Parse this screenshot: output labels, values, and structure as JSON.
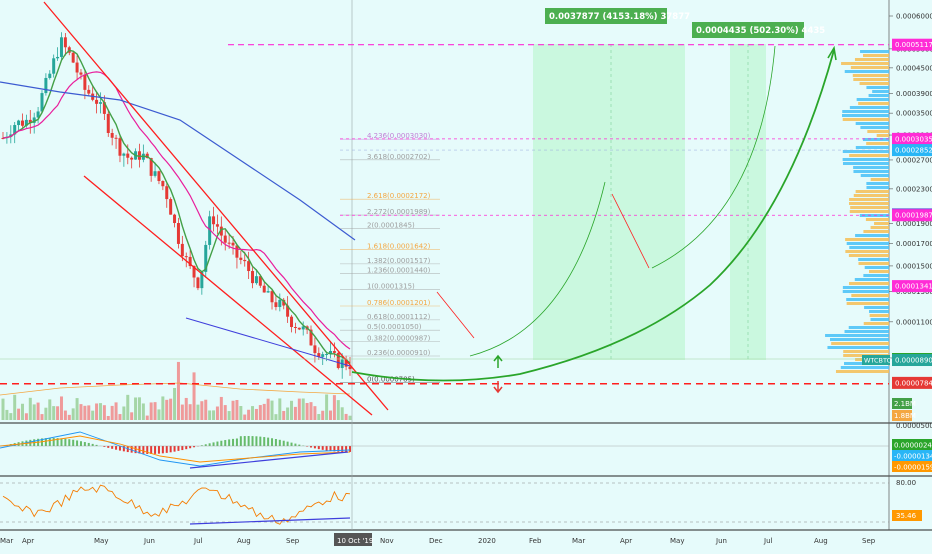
{
  "colors": {
    "background": "#e6fbfb",
    "candle_up": "#26a69a",
    "candle_down": "#e53935",
    "ema_green": "#43a047",
    "ma_magenta": "#e91e9c",
    "ma_blue": "#3c5bd1",
    "channel": "#ff1e1e",
    "target": "#ff2bd6",
    "support": "#ff1e1e",
    "curve": "#2aa52a",
    "macd_line": "#2196f3",
    "signal_line": "#ff8f00",
    "rsi_line": "#f57c00",
    "divergence": "#3f3fdc"
  },
  "chart_data": {
    "type": "candlestick",
    "symbol": "WTCBTC",
    "price_axis": {
      "ticks": [
        "0.0006000",
        "0.0005000",
        "0.0004500",
        "0.0003900",
        "0.0003500",
        "0.0003100",
        "0.0002700",
        "0.0002300",
        "0.0001900",
        "0.0001700",
        "0.0001500",
        "0.0001300",
        "0.0001100",
        "0.0000900"
      ],
      "scale": "log"
    },
    "time_axis": {
      "ticks": [
        "Mar",
        "Apr",
        "May",
        "Jun",
        "Jul",
        "Aug",
        "Sep",
        "Oct",
        "Nov",
        "Dec",
        "2020",
        "Feb",
        "Mar",
        "Apr",
        "May",
        "Jun",
        "Jul",
        "Aug",
        "Sep"
      ],
      "cursor_label": "10 Oct '19"
    },
    "price_tags": [
      {
        "value": "0.0005117",
        "color": "#ff2bd6"
      },
      {
        "value": "0.0003035",
        "color": "#ff2bd6"
      },
      {
        "value": "0.0002852",
        "color": "#29b6f6"
      },
      {
        "value": "0.0001996",
        "color": "#5c4ad6"
      },
      {
        "value": "0.0001987",
        "color": "#ff2bd6"
      },
      {
        "value": "0.0001341",
        "color": "#ff2bd6"
      },
      {
        "value": "0.0000895",
        "color": "#2aa52a"
      },
      {
        "value": "0.0000890",
        "color": "#26a69a"
      },
      {
        "value": "0.0000784",
        "color": "#e53935"
      }
    ],
    "symbol_tag": "WTCBTC",
    "volume_tags": [
      "2.1BM",
      "1.8BM"
    ],
    "fib_levels": [
      {
        "label": "4.236(0.0003030)",
        "value": 0.000303,
        "color": "#c07fd6"
      },
      {
        "label": "3.618(0.0002702)",
        "value": 0.0002702,
        "color": "#9e9e9e"
      },
      {
        "label": "2.618(0.0002172)",
        "value": 0.0002172,
        "color": "#f4a742"
      },
      {
        "label": "2.272(0.0001989)",
        "value": 0.0001989,
        "color": "#9e9e9e"
      },
      {
        "label": "2(0.0001845)",
        "value": 0.0001845,
        "color": "#9e9e9e"
      },
      {
        "label": "1.618(0.0001642)",
        "value": 0.0001642,
        "color": "#f4a742"
      },
      {
        "label": "1.382(0.0001517)",
        "value": 0.0001517,
        "color": "#9e9e9e"
      },
      {
        "label": "1.236(0.0001440)",
        "value": 0.000144,
        "color": "#9e9e9e"
      },
      {
        "label": "1(0.0001315)",
        "value": 0.0001315,
        "color": "#9e9e9e"
      },
      {
        "label": "0.786(0.0001201)",
        "value": 0.0001201,
        "color": "#f4a742"
      },
      {
        "label": "0.618(0.0001112)",
        "value": 0.0001112,
        "color": "#9e9e9e"
      },
      {
        "label": "0.5(0.0001050)",
        "value": 0.000105,
        "color": "#9e9e9e"
      },
      {
        "label": "0.382(0.0000987)",
        "value": 9.87e-05,
        "color": "#9e9e9e"
      },
      {
        "label": "0.236(0.0000910)",
        "value": 9.1e-05,
        "color": "#9e9e9e"
      },
      {
        "label": "0(0.0000785)",
        "value": 7.85e-05,
        "color": "#555555"
      }
    ],
    "measure_boxes": [
      {
        "label": "0.0037877 (4153.18%) 37877"
      },
      {
        "label": "0.0004435 (502.30%) 4435"
      }
    ],
    "macd": {
      "ticks": [
        "0.0000500"
      ],
      "tags": [
        {
          "value": "0.0000024",
          "color": "#2aa52a"
        },
        {
          "value": "-0.0000134",
          "color": "#29b6f6"
        },
        {
          "value": "-0.0000159",
          "color": "#ff9800"
        }
      ]
    },
    "rsi": {
      "ticks": [
        "80.00"
      ],
      "tags": [
        {
          "value": "35.46",
          "color": "#ff9800"
        }
      ]
    },
    "close_price_path": [
      0.000305,
      0.00033,
      0.000335,
      0.00036,
      0.00043,
      0.00052,
      0.00047,
      0.0004,
      0.00038,
      0.00033,
      0.00029,
      0.00027,
      0.00028,
      0.00025,
      0.00023,
      0.00018,
      0.00015,
      0.000135,
      0.0002,
      0.000175,
      0.00016,
      0.00015,
      0.000135,
      0.000125,
      0.00012,
      0.00011,
      0.000105,
      9.5e-05,
      9.2e-05,
      8.8e-05,
      8.7e-05
    ]
  }
}
